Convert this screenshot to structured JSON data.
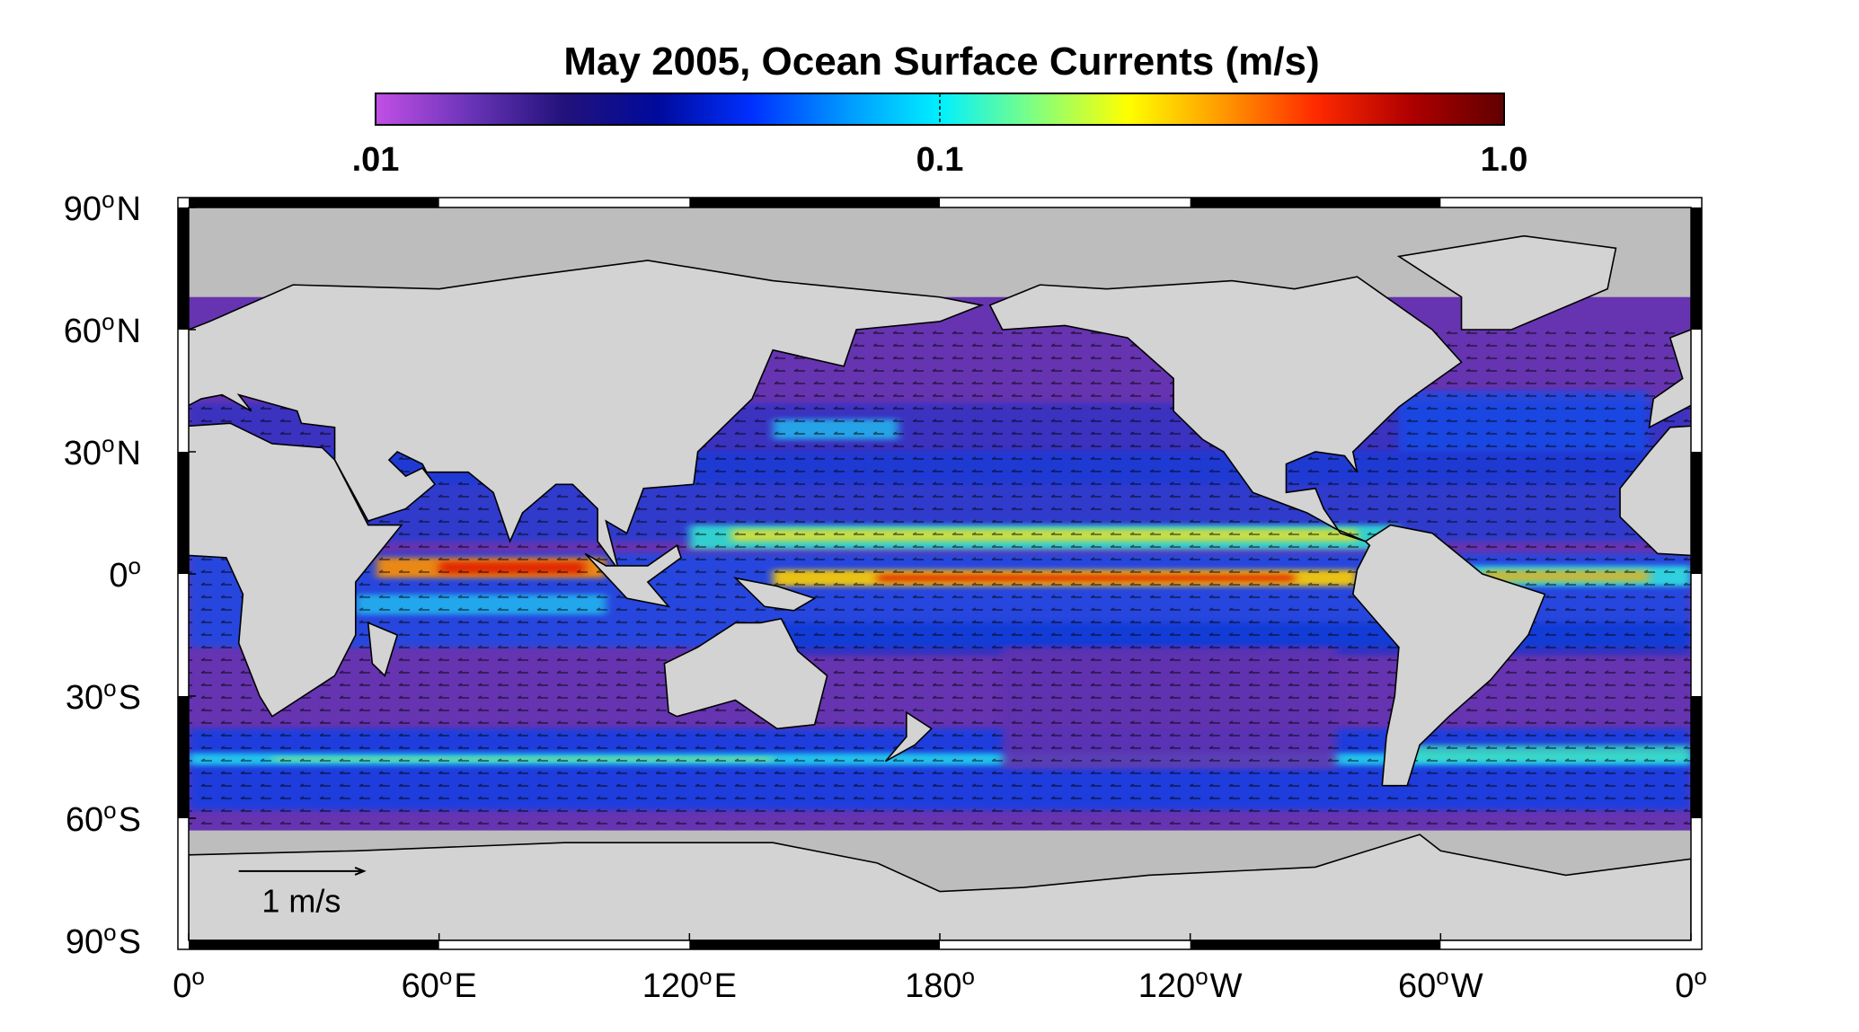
{
  "title": "May 2005, Ocean Surface Currents  (m/s)",
  "colorbar": {
    "scale": "log",
    "lim": [
      0.01,
      1.0
    ],
    "ticks": [
      {
        "value": 0.01,
        "label": ".01"
      },
      {
        "value": 0.1,
        "label": "0.1"
      },
      {
        "value": 1.0,
        "label": "1.0"
      }
    ],
    "colors": [
      "#c24fe6",
      "#6a34b8",
      "#22127a",
      "#000a9c",
      "#0030ff",
      "#0098ff",
      "#00f0ff",
      "#80ff80",
      "#ffff00",
      "#ff9a00",
      "#ff2a00",
      "#b00000",
      "#600000"
    ]
  },
  "lat_ticks": [
    {
      "value": 90,
      "num": "90",
      "sup": "o",
      "hem": "N"
    },
    {
      "value": 60,
      "num": "60",
      "sup": "o",
      "hem": "N"
    },
    {
      "value": 30,
      "num": "30",
      "sup": "o",
      "hem": "N"
    },
    {
      "value": 0,
      "num": "0",
      "sup": "o",
      "hem": ""
    },
    {
      "value": -30,
      "num": "30",
      "sup": "o",
      "hem": "S"
    },
    {
      "value": -60,
      "num": "60",
      "sup": "o",
      "hem": "S"
    },
    {
      "value": -90,
      "num": "90",
      "sup": "o",
      "hem": "S"
    }
  ],
  "lon_ticks": [
    {
      "value": 0,
      "num": "0",
      "sup": "o",
      "hem": ""
    },
    {
      "value": 60,
      "num": "60",
      "sup": "o",
      "hem": "E"
    },
    {
      "value": 120,
      "num": "120",
      "sup": "o",
      "hem": "E"
    },
    {
      "value": 180,
      "num": "180",
      "sup": "o",
      "hem": ""
    },
    {
      "value": 240,
      "num": "120",
      "sup": "o",
      "hem": "W"
    },
    {
      "value": 300,
      "num": "60",
      "sup": "o",
      "hem": "W"
    },
    {
      "value": 360,
      "num": "0",
      "sup": "o",
      "hem": ""
    }
  ],
  "scale_label": "1 m/s"
}
